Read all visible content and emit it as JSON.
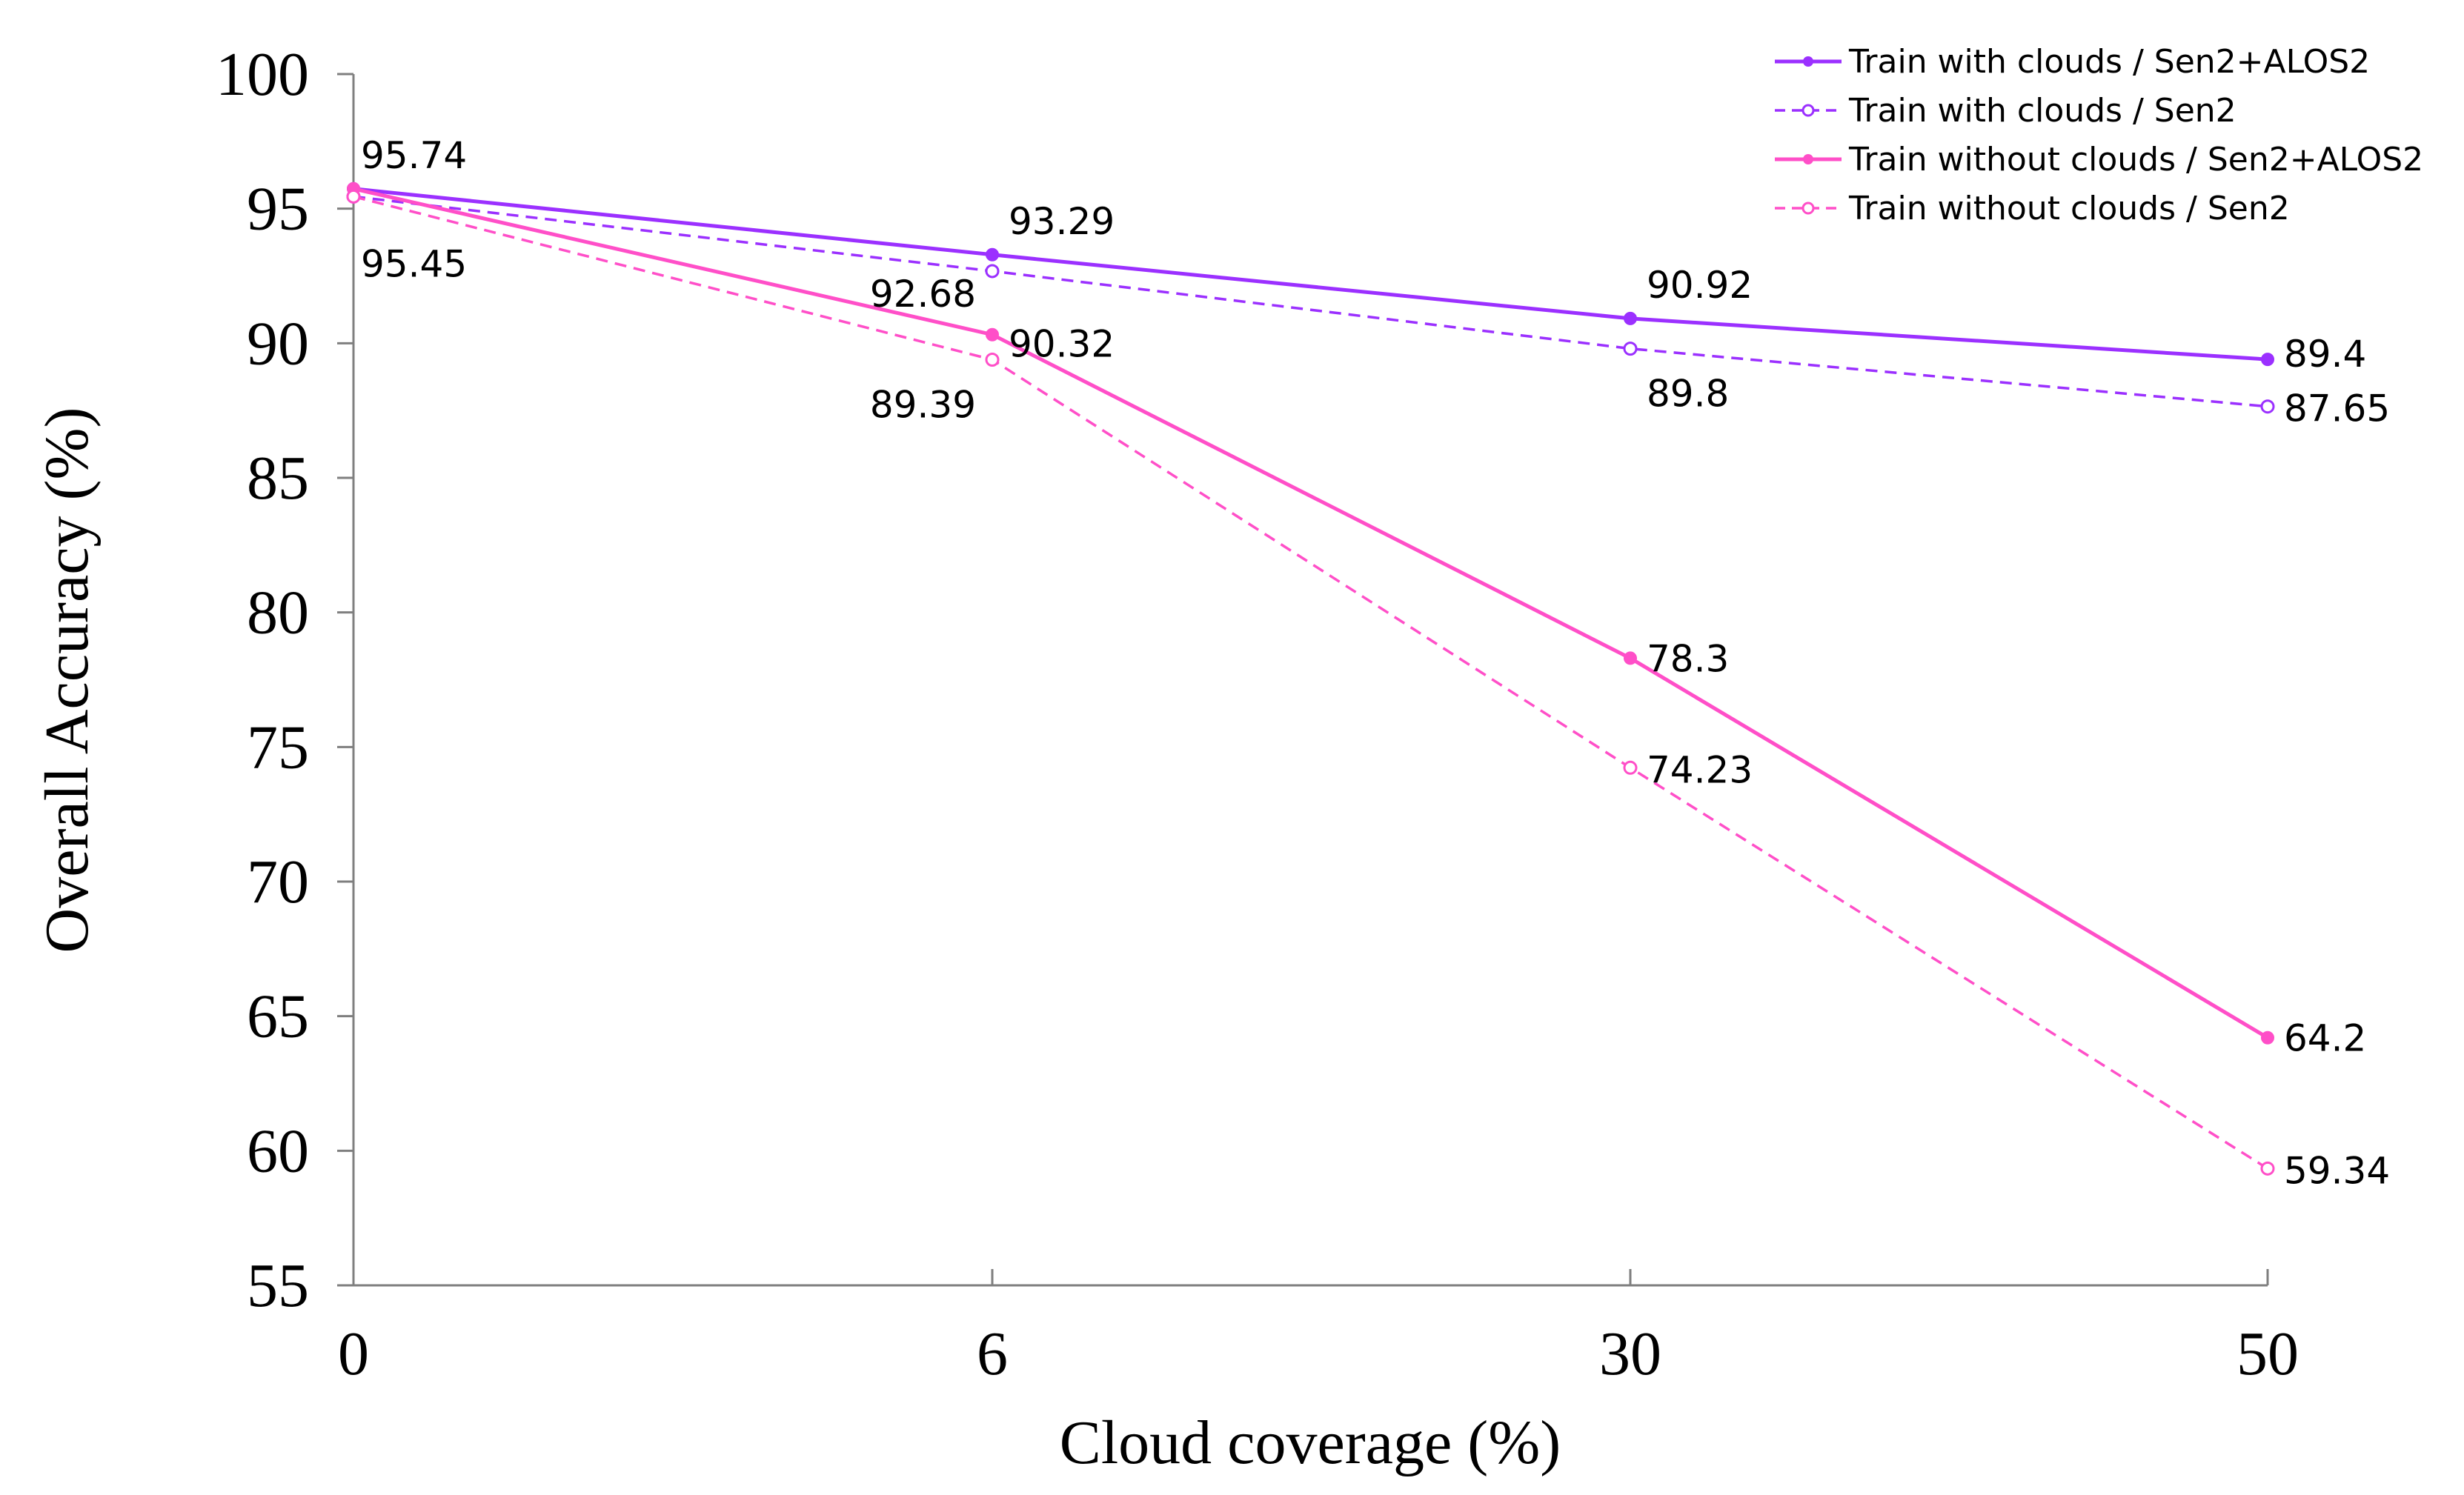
{
  "chart_data": {
    "type": "line",
    "title": "",
    "xlabel": "Cloud coverage (%)",
    "ylabel": "Overall Accuracy (%)",
    "categories": [
      "0",
      "6",
      "30",
      "50"
    ],
    "ylim": [
      55,
      100
    ],
    "yticks": [
      "55",
      "60",
      "65",
      "70",
      "75",
      "80",
      "85",
      "90",
      "95",
      "100"
    ],
    "grid": false,
    "legend_position": "top-right",
    "series": [
      {
        "name": "Train with clouds / Sen2+ALOS2",
        "values": [
          95.74,
          93.29,
          90.92,
          89.4
        ],
        "labels": [
          "95.74",
          "93.29",
          "90.92",
          "89.4"
        ],
        "color": "#9B30FF",
        "dashed": false,
        "marker": "filled"
      },
      {
        "name": "Train with clouds / Sen2",
        "values": [
          95.45,
          92.68,
          89.8,
          87.65
        ],
        "labels": [
          "95.45",
          "92.68",
          "89.8",
          "87.65"
        ],
        "color": "#9B30FF",
        "dashed": true,
        "marker": "hollow"
      },
      {
        "name": "Train without clouds / Sen2+ALOS2",
        "values": [
          95.74,
          90.32,
          78.3,
          64.2
        ],
        "labels": [
          "",
          "90.32",
          "78.3",
          "64.2"
        ],
        "color": "#FF4FC8",
        "dashed": false,
        "marker": "filled"
      },
      {
        "name": "Train without clouds / Sen2",
        "values": [
          95.45,
          89.39,
          74.23,
          59.34
        ],
        "labels": [
          "",
          "89.39",
          "74.23",
          "59.34"
        ],
        "color": "#FF4FC8",
        "dashed": true,
        "marker": "hollow"
      }
    ]
  }
}
